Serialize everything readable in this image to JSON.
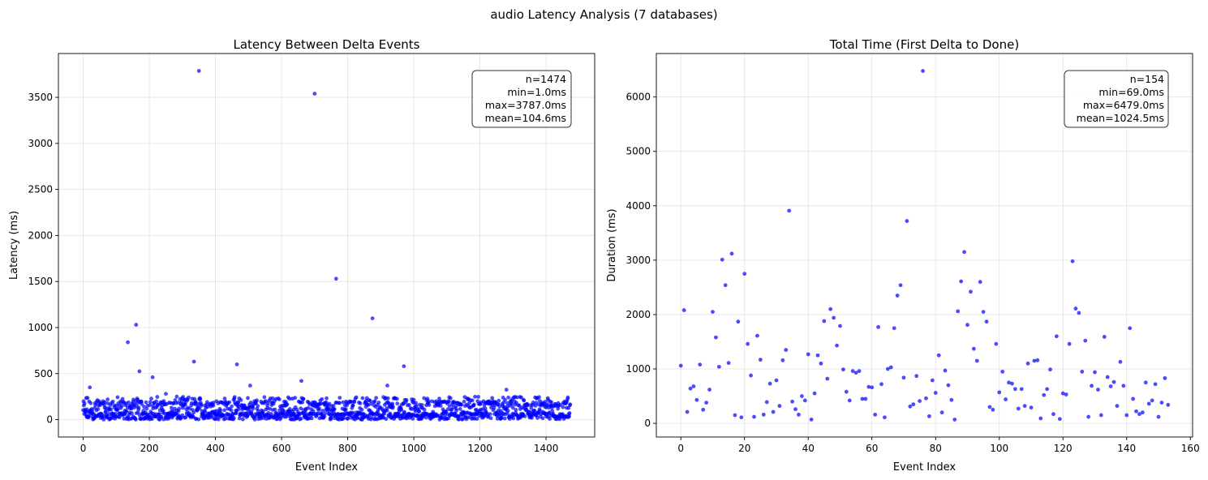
{
  "figure": {
    "title": "audio Latency Analysis (7 databases)"
  },
  "chart_data": [
    {
      "type": "scatter",
      "title": "Latency Between Delta Events",
      "xlabel": "Event Index",
      "ylabel": "Latency (ms)",
      "xlim": [
        -75,
        1547
      ],
      "ylim": [
        -189,
        3976
      ],
      "xticks": [
        0,
        200,
        400,
        600,
        800,
        1000,
        1200,
        1400
      ],
      "yticks": [
        0,
        500,
        1000,
        1500,
        2000,
        2500,
        3000,
        3500
      ],
      "grid": true,
      "color": "#0000ff",
      "stats": [
        "n=1474",
        "min=1.0ms",
        "max=3787.0ms",
        "mean=104.6ms"
      ],
      "stats_position": "top-right",
      "outliers": [
        {
          "x": 20,
          "y": 350
        },
        {
          "x": 135,
          "y": 840
        },
        {
          "x": 160,
          "y": 1030
        },
        {
          "x": 170,
          "y": 525
        },
        {
          "x": 210,
          "y": 460
        },
        {
          "x": 250,
          "y": 280
        },
        {
          "x": 335,
          "y": 630
        },
        {
          "x": 350,
          "y": 3787
        },
        {
          "x": 465,
          "y": 600
        },
        {
          "x": 505,
          "y": 370
        },
        {
          "x": 660,
          "y": 420
        },
        {
          "x": 700,
          "y": 3540
        },
        {
          "x": 765,
          "y": 1530
        },
        {
          "x": 875,
          "y": 1100
        },
        {
          "x": 920,
          "y": 370
        },
        {
          "x": 970,
          "y": 580
        },
        {
          "x": 1280,
          "y": 325
        }
      ],
      "n_points": 1474,
      "bulk_range": [
        1,
        250
      ]
    },
    {
      "type": "scatter",
      "title": "Total Time (First Delta to Done)",
      "xlabel": "Event Index",
      "ylabel": "Duration (ms)",
      "xlim": [
        -7.7,
        160.7
      ],
      "ylim": [
        -252,
        6800
      ],
      "xticks": [
        0,
        20,
        40,
        60,
        80,
        100,
        120,
        140,
        160
      ],
      "yticks": [
        0,
        1000,
        2000,
        3000,
        4000,
        5000,
        6000
      ],
      "grid": true,
      "color": "#0000ff",
      "stats": [
        "n=154",
        "min=69.0ms",
        "max=6479.0ms",
        "mean=1024.5ms"
      ],
      "stats_position": "top-right",
      "x": [
        0,
        1,
        2,
        3,
        4,
        5,
        6,
        7,
        8,
        9,
        10,
        11,
        12,
        13,
        14,
        15,
        16,
        17,
        18,
        19,
        20,
        21,
        22,
        23,
        24,
        25,
        26,
        27,
        28,
        29,
        30,
        31,
        32,
        33,
        34,
        35,
        36,
        37,
        38,
        39,
        40,
        41,
        42,
        43,
        44,
        45,
        46,
        47,
        48,
        49,
        50,
        51,
        52,
        53,
        54,
        55,
        56,
        57,
        58,
        59,
        60,
        61,
        62,
        63,
        64,
        65,
        66,
        67,
        68,
        69,
        70,
        71,
        72,
        73,
        74,
        75,
        76,
        77,
        78,
        79,
        80,
        81,
        82,
        83,
        84,
        85,
        86,
        87,
        88,
        89,
        90,
        91,
        92,
        93,
        94,
        95,
        96,
        97,
        98,
        99,
        100,
        101,
        102,
        103,
        104,
        105,
        106,
        107,
        108,
        109,
        110,
        111,
        112,
        113,
        114,
        115,
        116,
        117,
        118,
        119,
        120,
        121,
        122,
        123,
        124,
        125,
        126,
        127,
        128,
        129,
        130,
        131,
        132,
        133,
        134,
        135,
        136,
        137,
        138,
        139,
        140,
        141,
        142,
        143,
        144,
        145,
        146,
        147,
        148,
        149,
        150,
        151,
        152,
        153
      ],
      "y": [
        1060,
        2080,
        210,
        640,
        680,
        430,
        1080,
        250,
        380,
        620,
        2050,
        1580,
        1040,
        3010,
        2540,
        1110,
        3120,
        150,
        1870,
        110,
        2750,
        1460,
        880,
        120,
        1610,
        1170,
        160,
        390,
        730,
        210,
        790,
        320,
        1160,
        1350,
        3910,
        400,
        260,
        160,
        500,
        420,
        1270,
        70,
        550,
        1250,
        1100,
        1880,
        820,
        2100,
        1940,
        1430,
        1790,
        990,
        580,
        420,
        960,
        930,
        960,
        450,
        450,
        670,
        660,
        160,
        1770,
        720,
        110,
        1000,
        1030,
        1750,
        2350,
        2540,
        840,
        3720,
        310,
        350,
        870,
        410,
        6479,
        460,
        130,
        790,
        560,
        1250,
        200,
        970,
        700,
        430,
        69,
        2060,
        2610,
        3150,
        1810,
        2420,
        1370,
        1150,
        2600,
        2050,
        1870,
        300,
        250,
        1460,
        570,
        950,
        440,
        750,
        730,
        630,
        270,
        630,
        320,
        1100,
        290,
        1150,
        1160,
        90,
        520,
        630,
        990,
        170,
        1600,
        80,
        550,
        530,
        1460,
        2980,
        2110,
        2030,
        950,
        1520,
        120,
        690,
        940,
        620,
        150,
        1590,
        850,
        680,
        760,
        320,
        1130,
        690,
        150,
        1750,
        450,
        220,
        170,
        200,
        750,
        360,
        420,
        720,
        120,
        380,
        830,
        340
      ]
    }
  ]
}
